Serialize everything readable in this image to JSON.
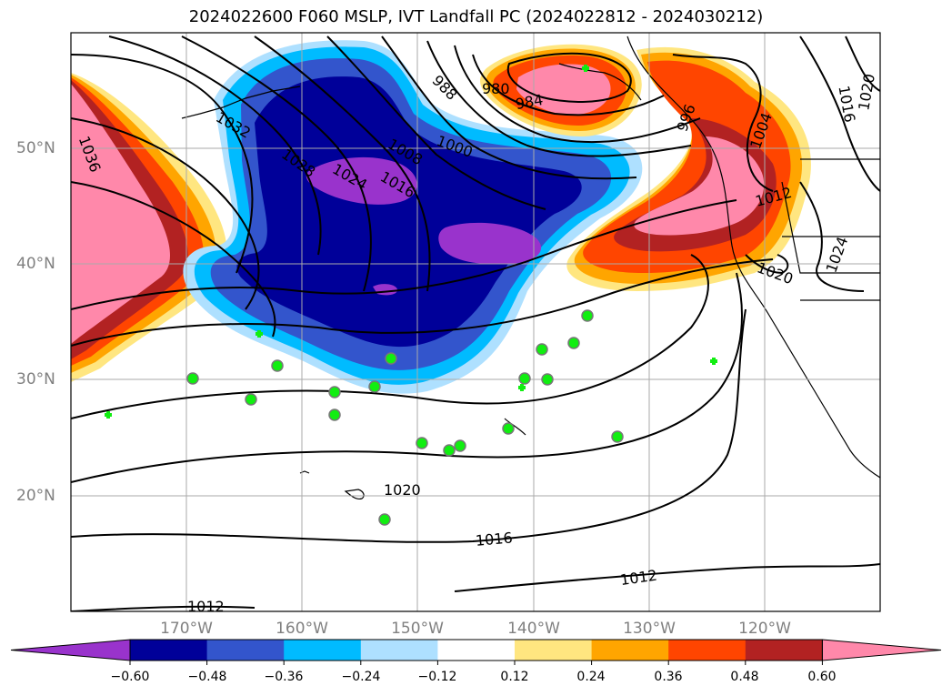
{
  "title": "2024022600 F060 MSLP, IVT Landfall PC (2024022812 - 2024030212)",
  "lat_labels": [
    "50°N",
    "40°N",
    "30°N",
    "20°N"
  ],
  "lon_labels": [
    "170°W",
    "160°W",
    "150°W",
    "140°W",
    "130°W",
    "120°W"
  ],
  "isobar_labels": [
    "1036",
    "1032",
    "1028",
    "1024",
    "1016",
    "1008",
    "1000",
    "988",
    "980",
    "984",
    "996",
    "1004",
    "1012",
    "1016",
    "1020",
    "1024",
    "1020",
    "1020",
    "1016",
    "1012",
    "1012"
  ],
  "colorbar": {
    "ticks": [
      "−0.60",
      "−0.48",
      "−0.36",
      "−0.24",
      "−0.12",
      "0.12",
      "0.24",
      "0.36",
      "0.48",
      "0.60"
    ],
    "colors": [
      "#9933cc",
      "#000099",
      "#3355cc",
      "#00bbff",
      "#aee0ff",
      "#ffffff",
      "#ffe680",
      "#ffa500",
      "#ff4500",
      "#b22222",
      "#ff88aa",
      "#ff88aa"
    ],
    "under_color": "#9933cc",
    "over_color": "#ff88aa"
  }
}
